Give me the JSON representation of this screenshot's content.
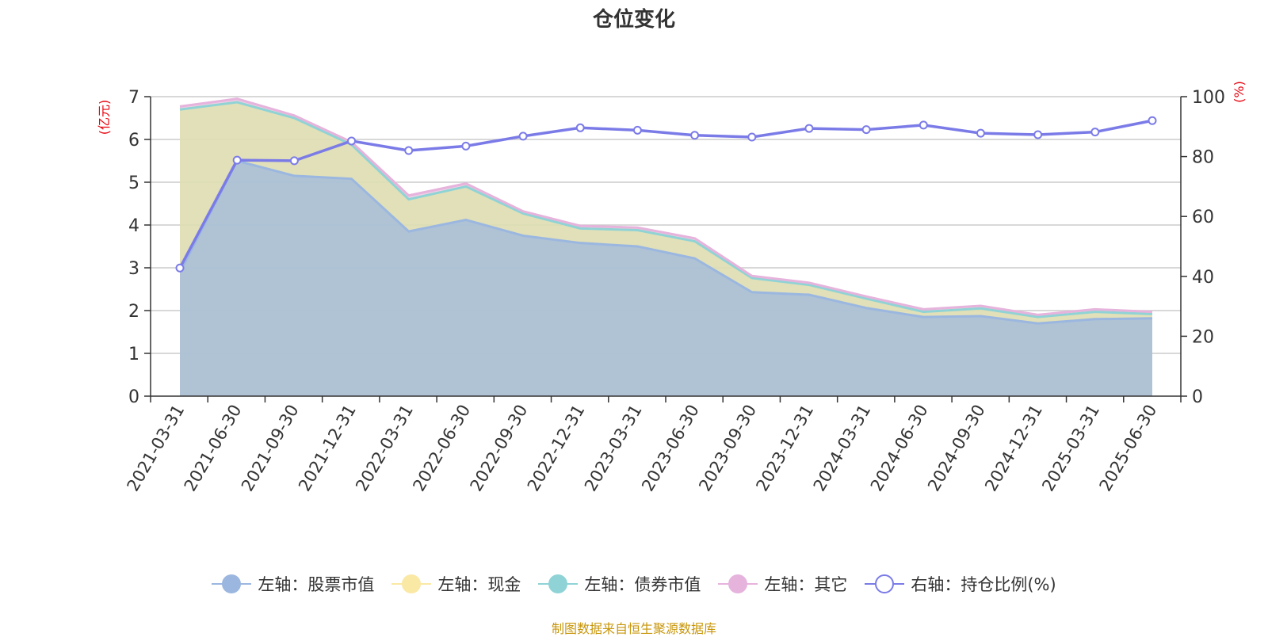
{
  "title": "仓位变化",
  "source": "制图数据来自恒生聚源数据库",
  "left_axis_unit": "(亿元)",
  "right_axis_unit": "(%)",
  "legend": [
    {
      "label": "左轴：股票市值",
      "color": "#9bb7e0",
      "icon": "filled-circle"
    },
    {
      "label": "左轴：现金",
      "color": "#fae8a5",
      "icon": "filled-circle"
    },
    {
      "label": "左轴：债券市值",
      "color": "#8fd3d6",
      "icon": "filled-circle"
    },
    {
      "label": "左轴：其它",
      "color": "#e6b3dc",
      "icon": "filled-circle"
    },
    {
      "label": "右轴：持仓比例(%)",
      "color": "#7b7be8",
      "icon": "hollow-circle"
    }
  ],
  "chart_data": {
    "type": "area",
    "categories": [
      "2021-03-31",
      "2021-06-30",
      "2021-09-30",
      "2021-12-31",
      "2022-03-31",
      "2022-06-30",
      "2022-09-30",
      "2022-12-31",
      "2023-03-31",
      "2023-06-30",
      "2023-09-30",
      "2023-12-31",
      "2024-03-31",
      "2024-06-30",
      "2024-09-30",
      "2024-12-31",
      "2025-03-31",
      "2025-06-30"
    ],
    "left_ylim": [
      0,
      7
    ],
    "left_yticks": [
      0,
      1,
      2,
      3,
      4,
      5,
      6,
      7
    ],
    "right_ylim": [
      0,
      100
    ],
    "right_yticks": [
      0,
      20,
      40,
      60,
      80,
      100
    ],
    "grid": true,
    "legend_position": "bottom",
    "series": [
      {
        "name": "左轴：股票市值",
        "axis": "left",
        "stack": true,
        "color": "#9bb7e0",
        "values": [
          2.9,
          5.5,
          5.15,
          5.08,
          3.85,
          4.12,
          3.75,
          3.58,
          3.5,
          3.22,
          2.43,
          2.37,
          2.06,
          1.85,
          1.87,
          1.7,
          1.8,
          1.82
        ]
      },
      {
        "name": "左轴：现金",
        "axis": "left",
        "stack": true,
        "color": "#fae8a5",
        "values": [
          3.8,
          1.37,
          1.35,
          0.8,
          0.75,
          0.78,
          0.52,
          0.34,
          0.38,
          0.4,
          0.33,
          0.23,
          0.22,
          0.12,
          0.18,
          0.15,
          0.17,
          0.1
        ]
      },
      {
        "name": "左轴：债券市值",
        "axis": "left",
        "stack": true,
        "color": "#8fd3d6",
        "values": [
          0,
          0,
          0,
          0,
          0,
          0,
          0,
          0,
          0,
          0,
          0,
          0,
          0,
          0,
          0,
          0,
          0,
          0
        ]
      },
      {
        "name": "左轴：其它",
        "axis": "left",
        "stack": true,
        "color": "#e6b3dc",
        "values": [
          0.07,
          0.08,
          0.06,
          0.06,
          0.09,
          0.07,
          0.05,
          0.06,
          0.06,
          0.07,
          0.05,
          0.05,
          0.05,
          0.06,
          0.06,
          0.05,
          0.06,
          0.05
        ]
      },
      {
        "name": "右轴：持仓比例(%)",
        "axis": "right",
        "type": "line",
        "color": "#7b7be8",
        "values": [
          42.8,
          78.8,
          78.6,
          85.2,
          82.0,
          83.5,
          86.8,
          89.6,
          88.8,
          87.1,
          86.5,
          89.4,
          89.0,
          90.5,
          87.8,
          87.3,
          88.2,
          92.0
        ]
      }
    ]
  }
}
